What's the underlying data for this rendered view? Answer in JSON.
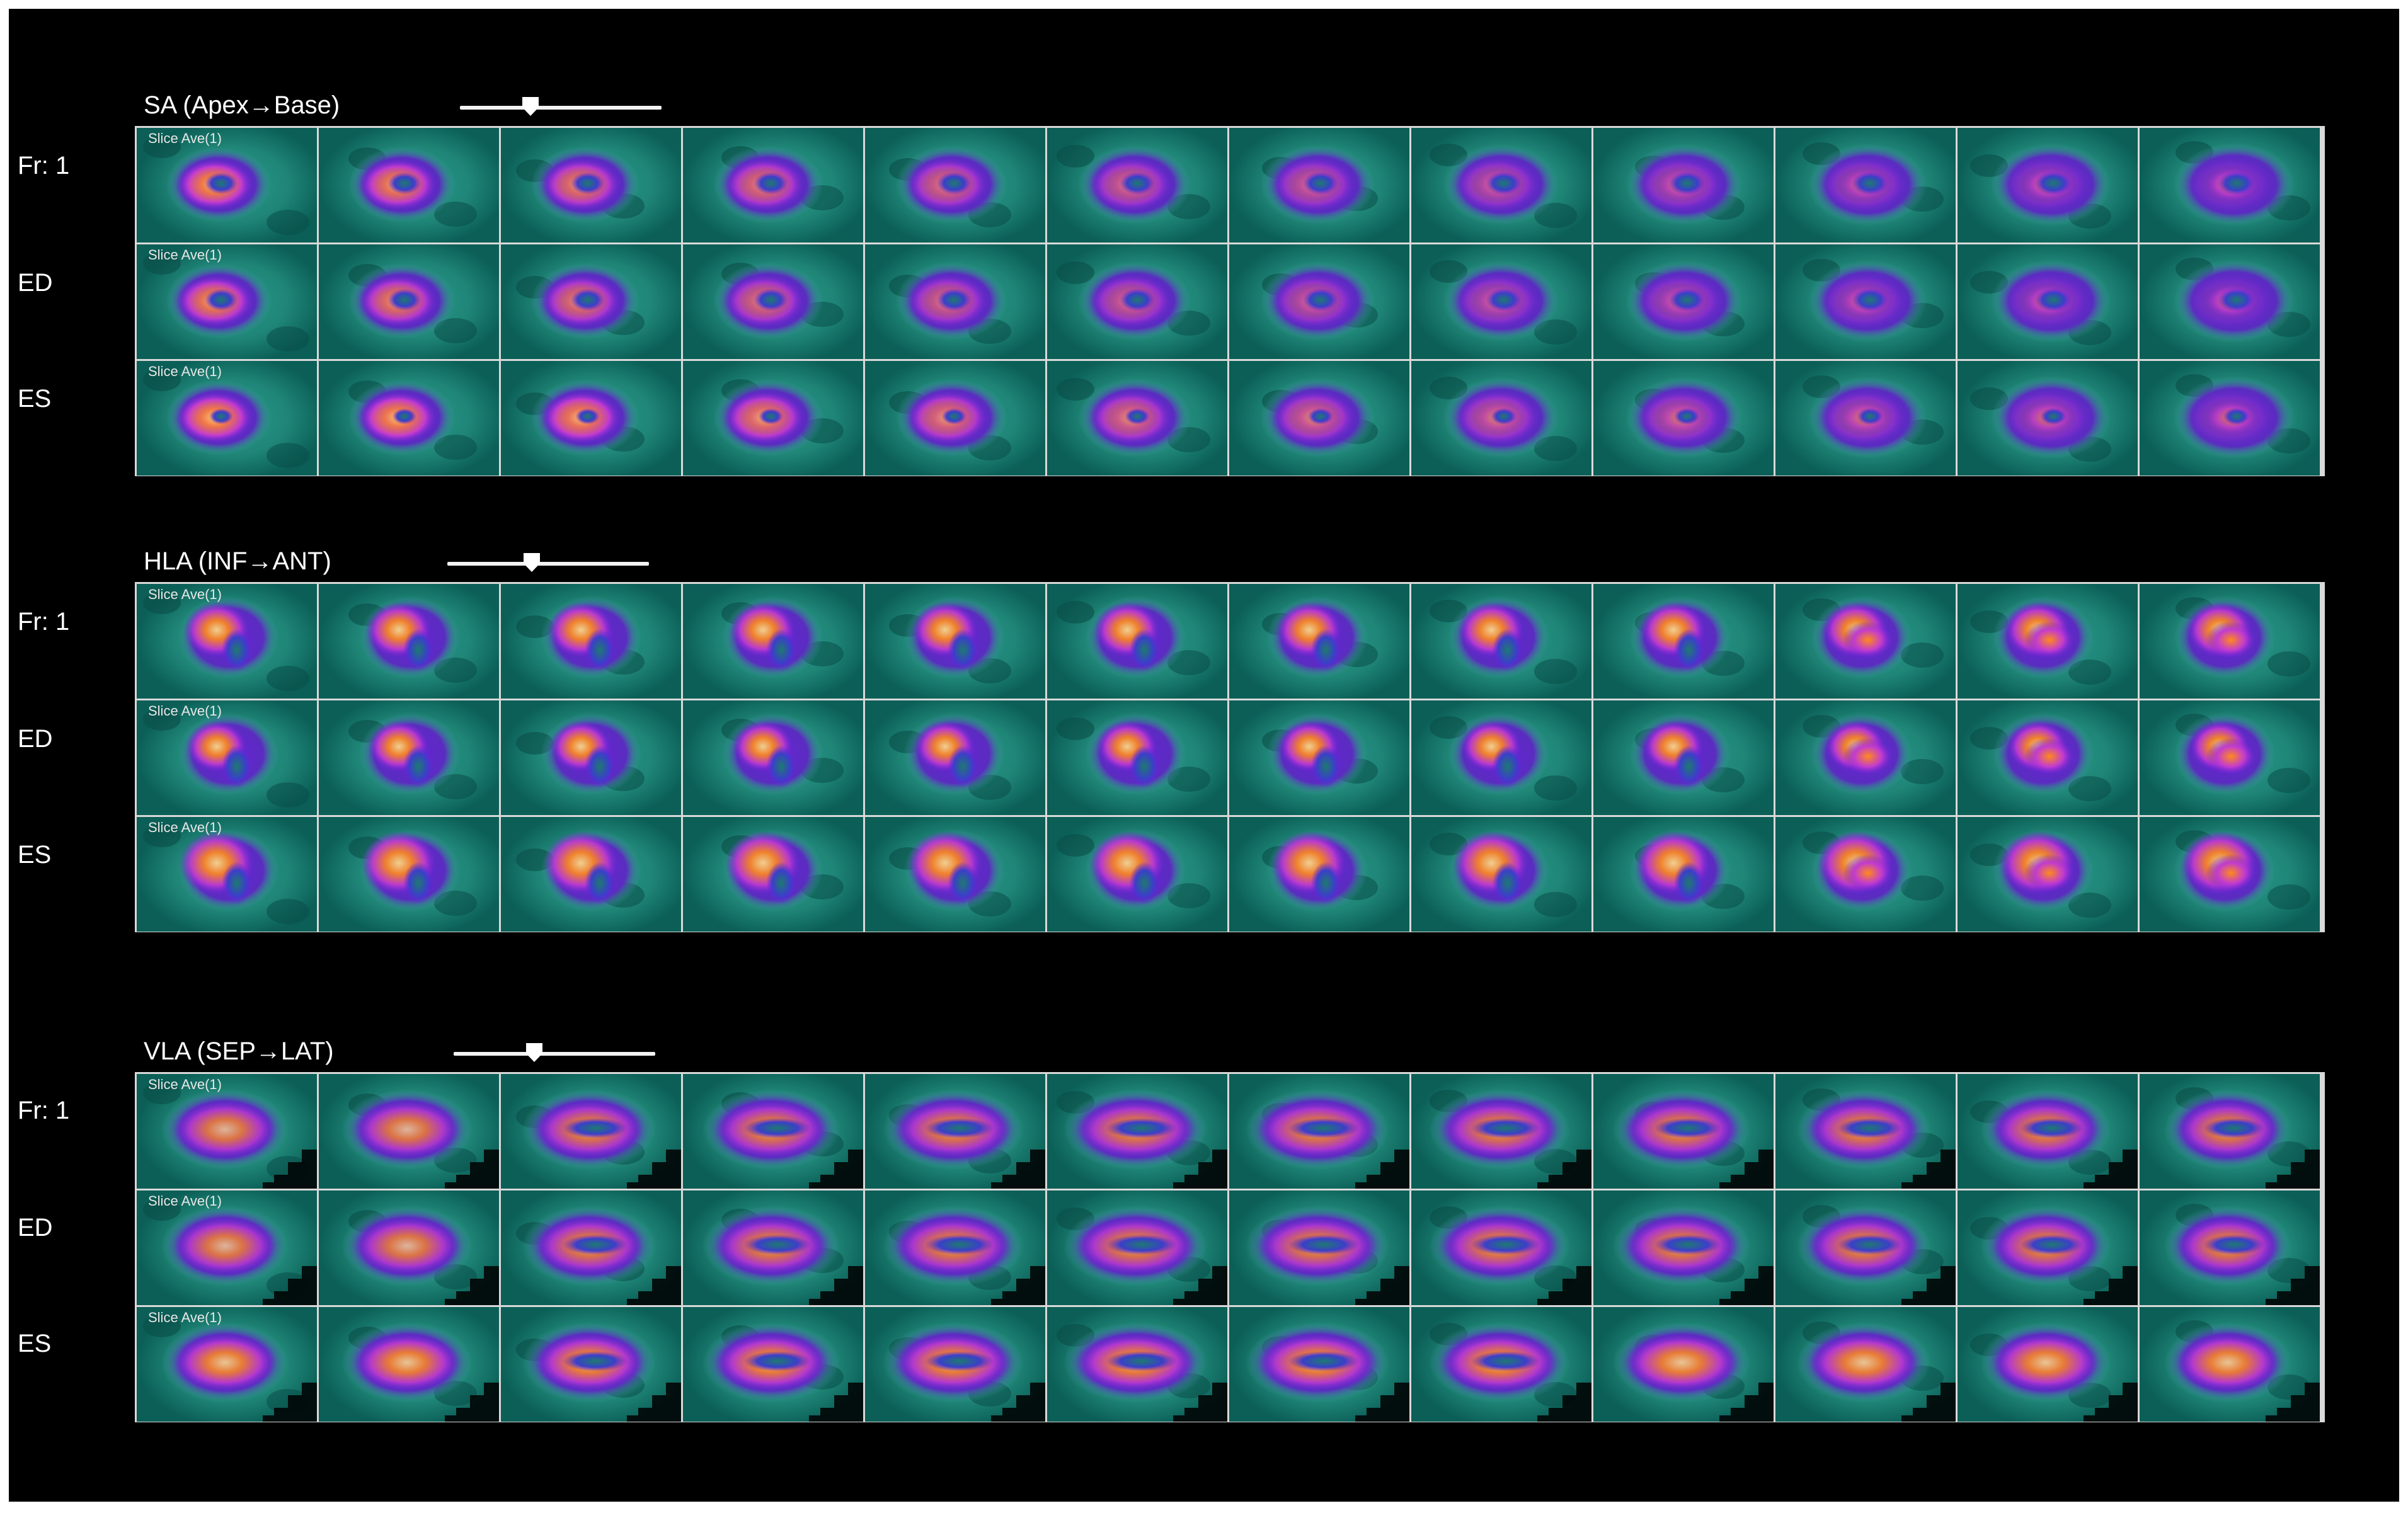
{
  "colors": {
    "background": "#000000",
    "tile_base": "#0b5f57",
    "tile_teal": "#2a9b8c",
    "tile_purple": "#6a22d8",
    "tile_magenta": "#c23bd0",
    "tile_orange": "#ff8a1a",
    "tile_yellow": "#ffe28a",
    "border": "#d9d9d9",
    "text": "#ffffff"
  },
  "sections": [
    {
      "id": "sa",
      "title": "SA (Apex→Base)",
      "view": "sa",
      "slider_position": 0.35,
      "rows": [
        {
          "label": "Fr: 1",
          "kind": "frame1",
          "slice_label": "Slice Ave(1)"
        },
        {
          "label": "ED",
          "kind": "ed",
          "slice_label": "Slice Ave(1)"
        },
        {
          "label": "ES",
          "kind": "es",
          "slice_label": "Slice Ave(1)"
        }
      ]
    },
    {
      "id": "hla",
      "title": "HLA (INF→ANT)",
      "view": "hla",
      "slider_position": 0.42,
      "rows": [
        {
          "label": "Fr: 1",
          "kind": "frame1",
          "slice_label": "Slice Ave(1)"
        },
        {
          "label": "ED",
          "kind": "ed",
          "slice_label": "Slice Ave(1)"
        },
        {
          "label": "ES",
          "kind": "es",
          "slice_label": "Slice Ave(1)"
        }
      ]
    },
    {
      "id": "vla",
      "title": "VLA (SEP→LAT)",
      "view": "vla",
      "slider_position": 0.4,
      "rows": [
        {
          "label": "Fr: 1",
          "kind": "frame1",
          "slice_label": "Slice Ave(1)"
        },
        {
          "label": "ED",
          "kind": "ed",
          "slice_label": "Slice Ave(1)"
        },
        {
          "label": "ES",
          "kind": "es",
          "slice_label": "Slice Ave(1)"
        }
      ]
    }
  ],
  "slices_per_row": 12
}
